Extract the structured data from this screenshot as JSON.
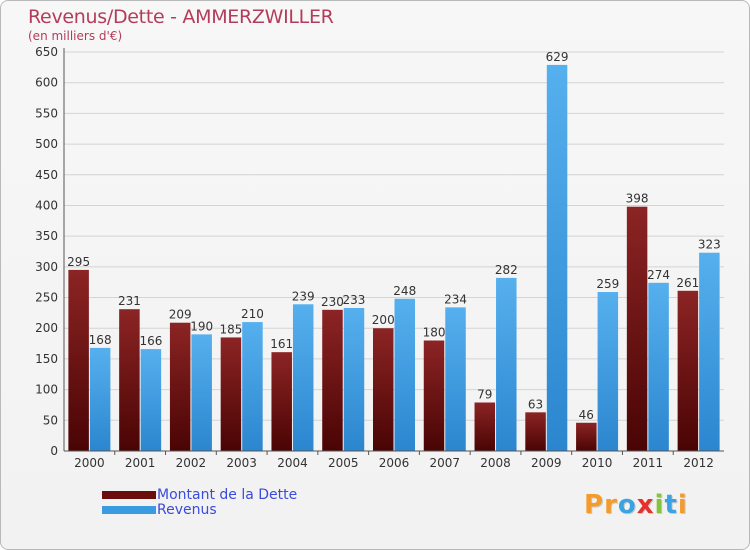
{
  "header": {
    "title": "Revenus/Dette - AMMERZWILLER",
    "subtitle": "(en milliers d'€)"
  },
  "colors": {
    "title": "#b43c5a",
    "debt": "#7a1515",
    "revenue": "#3b9be0",
    "legend_text": "#3a4bdc",
    "grid": "#d4d4d4"
  },
  "legend": {
    "items": [
      {
        "label": "Montant de la Dette",
        "color": "#6a0d0d"
      },
      {
        "label": "Revenus",
        "color": "#3b9be0"
      }
    ]
  },
  "logo": {
    "text": "Proxiti",
    "letters": [
      {
        "ch": "P",
        "color": "#f39c2b"
      },
      {
        "ch": "r",
        "color": "#f39c2b"
      },
      {
        "ch": "o",
        "color": "#3aa3e3"
      },
      {
        "ch": "x",
        "color": "#e6302b"
      },
      {
        "ch": "i",
        "color": "#86c33b"
      },
      {
        "ch": "t",
        "color": "#3aa3e3"
      },
      {
        "ch": "i",
        "color": "#f39c2b"
      }
    ]
  },
  "chart_data": {
    "type": "bar",
    "title": "Revenus/Dette - AMMERZWILLER",
    "subtitle": "(en milliers d'€)",
    "xlabel": "",
    "ylabel": "",
    "ylim": [
      0,
      650
    ],
    "yticks": [
      0,
      50,
      100,
      150,
      200,
      250,
      300,
      350,
      400,
      450,
      500,
      550,
      600,
      650
    ],
    "grid": true,
    "legend_position": "bottom-left",
    "categories": [
      "2000",
      "2001",
      "2002",
      "2003",
      "2004",
      "2005",
      "2006",
      "2007",
      "2008",
      "2009",
      "2010",
      "2011",
      "2012"
    ],
    "series": [
      {
        "name": "Montant de la Dette",
        "values": [
          295,
          231,
          209,
          185,
          161,
          230,
          200,
          180,
          79,
          63,
          46,
          398,
          261
        ]
      },
      {
        "name": "Revenus",
        "values": [
          168,
          166,
          190,
          210,
          239,
          233,
          248,
          234,
          282,
          629,
          259,
          274,
          323
        ]
      }
    ]
  }
}
